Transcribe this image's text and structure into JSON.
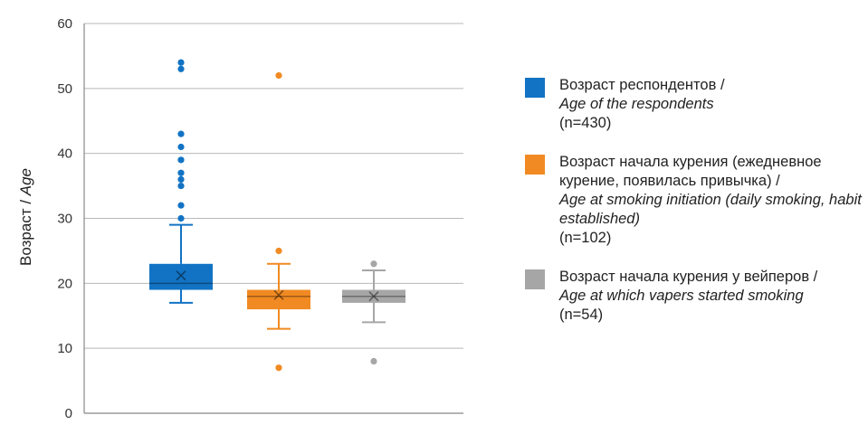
{
  "chart_data": {
    "type": "box",
    "ylabel": {
      "ru": "Возраст / ",
      "en": "Age"
    },
    "ylim": [
      0,
      60
    ],
    "yticks": [
      0,
      10,
      20,
      30,
      40,
      50,
      60
    ],
    "grid": true,
    "legend_position": "right",
    "series": [
      {
        "legend_lines": [
          "Возраст респондентов /"
        ],
        "legend_en": "Age of the respondents",
        "legend_n": "(n=430)",
        "color": "#1273c4",
        "min": 17,
        "q1": 19,
        "median": 20,
        "q3": 23,
        "max": 29,
        "mean": 21.2,
        "outliers": [
          30,
          32,
          35,
          36,
          37,
          39,
          41,
          43,
          53,
          54
        ]
      },
      {
        "legend_lines": [
          "Возраст начала курения (ежедневное",
          "курение, появилась привычка) /"
        ],
        "legend_en": "Age at smoking initiation (daily smoking, habit established)",
        "legend_n": "(n=102)",
        "color": "#f18a22",
        "min": 13,
        "q1": 16,
        "median": 18,
        "q3": 19,
        "max": 23,
        "mean": 18.2,
        "outliers": [
          7,
          25,
          52
        ]
      },
      {
        "legend_lines": [
          "Возраст начала курения у вейперов /"
        ],
        "legend_en": "Age at which vapers started smoking",
        "legend_n": "(n=54)",
        "color": "#a6a6a6",
        "min": 14,
        "q1": 17,
        "median": 18,
        "q3": 19,
        "max": 22,
        "mean": 18,
        "outliers": [
          8,
          23
        ]
      }
    ]
  }
}
